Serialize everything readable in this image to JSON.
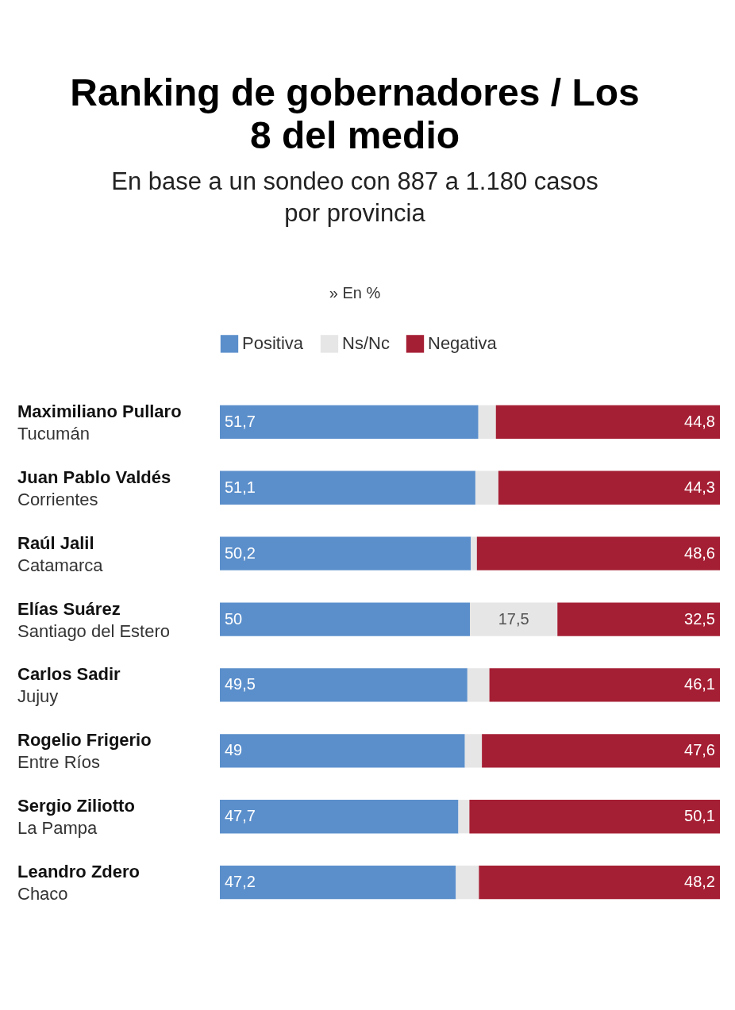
{
  "chart_data": {
    "type": "bar",
    "orientation": "horizontal",
    "stacked": true,
    "legend": "top",
    "title": "Ranking de gobernadores / Los 8 del medio",
    "subtitle": "En base a un sondeo con 887 a 1.180 casos por provincia",
    "annotations": [
      "» En %"
    ],
    "categories": [
      "Maximiliano Pullaro\nTucumán",
      "Juan Pablo Valdés\nCorrientes",
      "Raúl Jalil\nCatamarca",
      "Elías Suárez\nSantiago del Estero",
      "Carlos Sadir\nJujuy",
      "Rogelio Frigerio\nEntre Ríos",
      "Sergio Ziliotto\nLa Pampa",
      "Leandro Zdero\nChaco"
    ],
    "series": [
      {
        "name": "Positiva",
        "color": "#5b8fcb",
        "values": [
          51.7,
          51.1,
          50.2,
          50,
          49.5,
          49,
          47.7,
          47.2
        ],
        "value_labels": [
          "51,7",
          "51,1",
          "50,2",
          "50",
          "49,5",
          "49",
          "47,7",
          "47,2"
        ]
      },
      {
        "name": "Ns/Nc",
        "color": "#e6e6e6",
        "values": [
          3.5,
          4.6,
          1.2,
          17.5,
          4.4,
          3.4,
          2.2,
          4.6
        ],
        "value_labels": [
          null,
          null,
          null,
          "17,5",
          null,
          null,
          null,
          null
        ]
      },
      {
        "name": "Negativa",
        "color": "#a51f34",
        "values": [
          44.8,
          44.3,
          48.6,
          32.5,
          46.1,
          47.6,
          50.1,
          48.2
        ],
        "value_labels": [
          "44,8",
          "44,3",
          "48,6",
          "32,5",
          "46,1",
          "47,6",
          "50,1",
          "48,2"
        ]
      }
    ]
  }
}
